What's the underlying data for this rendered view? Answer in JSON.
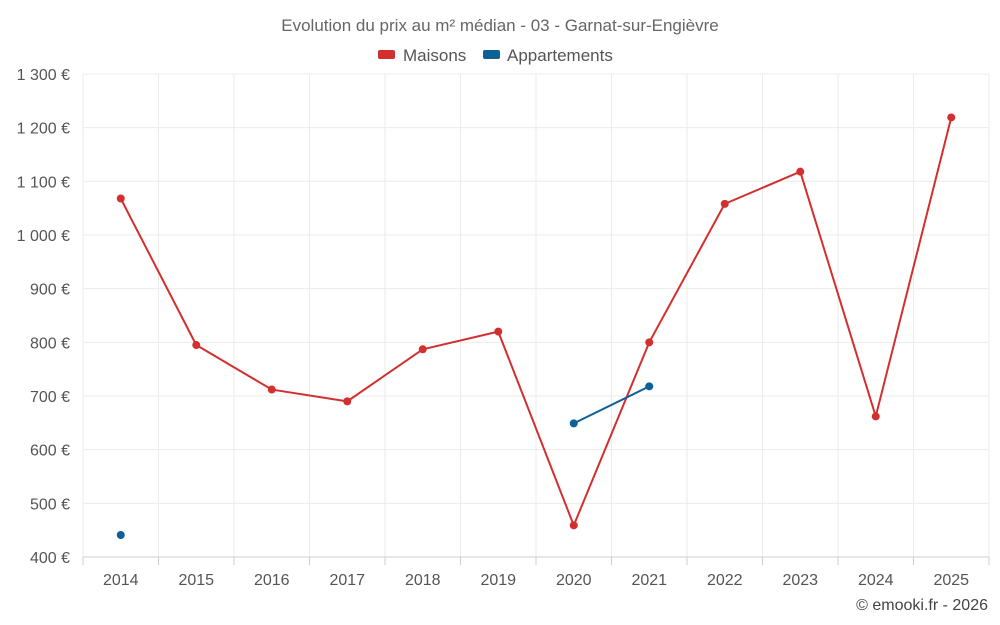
{
  "chart_data": {
    "type": "line",
    "title": "Evolution du prix au m² médian - 03 - Garnat-sur-Engièvre",
    "categories": [
      "2014",
      "2015",
      "2016",
      "2017",
      "2018",
      "2019",
      "2020",
      "2021",
      "2022",
      "2023",
      "2024",
      "2025"
    ],
    "ylim": [
      400,
      1300
    ],
    "yticks": [
      400,
      500,
      600,
      700,
      800,
      900,
      1000,
      1100,
      1200,
      1300
    ],
    "ytick_labels": [
      "400 €",
      "500 €",
      "600 €",
      "700 €",
      "800 €",
      "900 €",
      "1 000 €",
      "1 100 €",
      "1 200 €",
      "1 300 €"
    ],
    "grid": true,
    "legend_position": "top-center",
    "series": [
      {
        "name": "Maisons",
        "color": "#d32f2f",
        "values": [
          1068,
          795,
          712,
          690,
          787,
          820,
          459,
          800,
          1058,
          1118,
          662,
          1219
        ]
      },
      {
        "name": "Appartements",
        "color": "#0d6196",
        "values": [
          441,
          null,
          null,
          null,
          null,
          null,
          649,
          718,
          null,
          null,
          null,
          null
        ]
      }
    ],
    "credit": "© emooki.fr - 2026"
  }
}
